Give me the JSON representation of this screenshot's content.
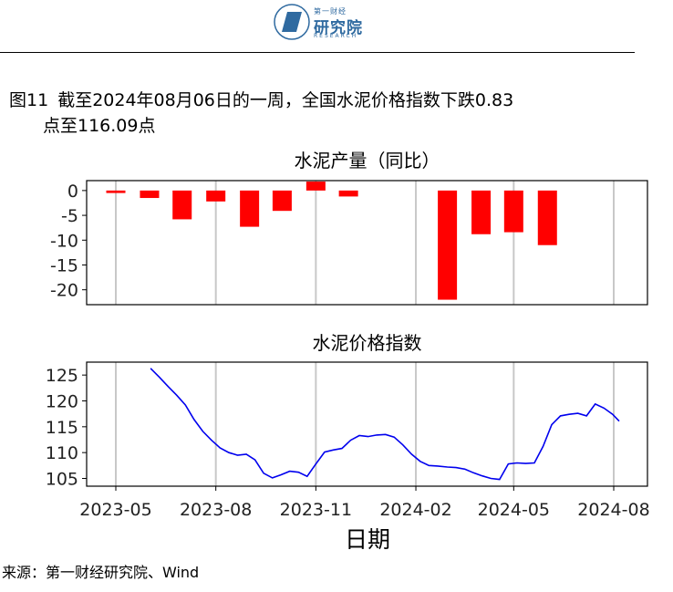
{
  "header": {
    "logo_small": "第一财经",
    "logo_main": "研究院",
    "logo_sub": "RESEARCH"
  },
  "figure": {
    "number": "图11",
    "title_line1": "截至2024年08月06日的一周，全国水泥价格指数下跌0.83",
    "title_line2": "点至116.09点"
  },
  "source": "来源：第一财经研究院、Wind",
  "chart_data": [
    {
      "type": "bar",
      "title": "水泥产量（同比）",
      "xlabel": "日期",
      "ylabel": "",
      "color": "#ff0000",
      "ylim": [
        -23,
        2
      ],
      "yticks": [
        0,
        -5,
        -10,
        -15,
        -20
      ],
      "xticks": [
        "2023-05",
        "2023-08",
        "2023-11",
        "2024-02",
        "2024-05",
        "2024-08"
      ],
      "x": [
        "2023-05",
        "2023-06",
        "2023-07",
        "2023-08",
        "2023-09",
        "2023-10",
        "2023-11",
        "2023-12",
        "2024-03",
        "2024-04",
        "2024-05",
        "2024-06"
      ],
      "values": [
        -0.5,
        -1.5,
        -5.8,
        -2.2,
        -7.3,
        -4.1,
        1.8,
        -1.2,
        -22.0,
        -8.8,
        -8.4,
        -11.0
      ]
    },
    {
      "type": "line",
      "title": "水泥价格指数",
      "xlabel": "日期",
      "ylabel": "",
      "color": "#0000ee",
      "ylim": [
        103.5,
        127.5
      ],
      "yticks": [
        105,
        110,
        115,
        120,
        125
      ],
      "xticks": [
        "2023-05",
        "2023-08",
        "2023-11",
        "2024-02",
        "2024-05",
        "2024-08"
      ],
      "points": [
        [
          "2023-06-02",
          126.3
        ],
        [
          "2023-06-10",
          124.6
        ],
        [
          "2023-06-18",
          122.8
        ],
        [
          "2023-06-26",
          121.1
        ],
        [
          "2023-07-04",
          119.2
        ],
        [
          "2023-07-12",
          116.4
        ],
        [
          "2023-07-20",
          114.1
        ],
        [
          "2023-07-28",
          112.4
        ],
        [
          "2023-08-05",
          110.9
        ],
        [
          "2023-08-13",
          110.0
        ],
        [
          "2023-08-21",
          109.5
        ],
        [
          "2023-08-29",
          109.7
        ],
        [
          "2023-09-06",
          108.6
        ],
        [
          "2023-09-14",
          106.0
        ],
        [
          "2023-09-22",
          105.1
        ],
        [
          "2023-09-30",
          105.7
        ],
        [
          "2023-10-08",
          106.4
        ],
        [
          "2023-10-16",
          106.2
        ],
        [
          "2023-10-24",
          105.4
        ],
        [
          "2023-11-01",
          107.8
        ],
        [
          "2023-11-09",
          110.1
        ],
        [
          "2023-11-17",
          110.5
        ],
        [
          "2023-11-25",
          110.8
        ],
        [
          "2023-12-03",
          112.4
        ],
        [
          "2023-12-11",
          113.3
        ],
        [
          "2023-12-19",
          113.1
        ],
        [
          "2023-12-27",
          113.4
        ],
        [
          "2024-01-04",
          113.5
        ],
        [
          "2024-01-12",
          113.0
        ],
        [
          "2024-01-20",
          111.5
        ],
        [
          "2024-01-28",
          109.7
        ],
        [
          "2024-02-05",
          108.3
        ],
        [
          "2024-02-13",
          107.5
        ],
        [
          "2024-02-21",
          107.4
        ],
        [
          "2024-03-01",
          107.2
        ],
        [
          "2024-03-09",
          107.1
        ],
        [
          "2024-03-17",
          106.8
        ],
        [
          "2024-03-25",
          106.1
        ],
        [
          "2024-04-02",
          105.5
        ],
        [
          "2024-04-10",
          105.0
        ],
        [
          "2024-04-18",
          104.8
        ],
        [
          "2024-04-26",
          107.8
        ],
        [
          "2024-05-04",
          108.0
        ],
        [
          "2024-05-12",
          107.9
        ],
        [
          "2024-05-20",
          108.0
        ],
        [
          "2024-05-28",
          111.2
        ],
        [
          "2024-06-05",
          115.4
        ],
        [
          "2024-06-13",
          117.1
        ],
        [
          "2024-06-21",
          117.4
        ],
        [
          "2024-06-29",
          117.6
        ],
        [
          "2024-07-07",
          117.1
        ],
        [
          "2024-07-15",
          119.4
        ],
        [
          "2024-07-23",
          118.6
        ],
        [
          "2024-07-31",
          117.4
        ],
        [
          "2024-08-06",
          116.09
        ]
      ]
    }
  ]
}
